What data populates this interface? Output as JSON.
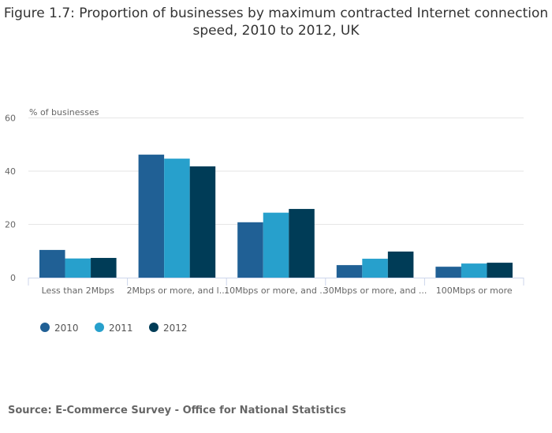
{
  "chart_data": {
    "type": "bar",
    "title": "Figure 1.7: Proportion of businesses by maximum contracted Internet connection speed, 2010 to 2012, UK",
    "ylabel": "% of businesses",
    "xlabel": "",
    "ylim": [
      0,
      60
    ],
    "yticks": [
      0,
      20,
      40,
      60
    ],
    "grid": true,
    "legend_position": "bottom-left",
    "categories": [
      "Less than 2Mbps",
      "2Mbps or more, and l...",
      "10Mbps or more, and ...",
      "30Mbps or more, and ...",
      "100Mbps or more"
    ],
    "series": [
      {
        "name": "2010",
        "color": "#206095",
        "values": [
          10.4,
          46.2,
          20.8,
          4.7,
          4.1
        ]
      },
      {
        "name": "2011",
        "color": "#27a0cc",
        "values": [
          7.2,
          44.7,
          24.4,
          7.1,
          5.3
        ]
      },
      {
        "name": "2012",
        "color": "#003c57",
        "values": [
          7.4,
          41.8,
          25.8,
          9.8,
          5.6
        ]
      }
    ],
    "source": "Source: E-Commerce Survey - Office for National Statistics"
  }
}
